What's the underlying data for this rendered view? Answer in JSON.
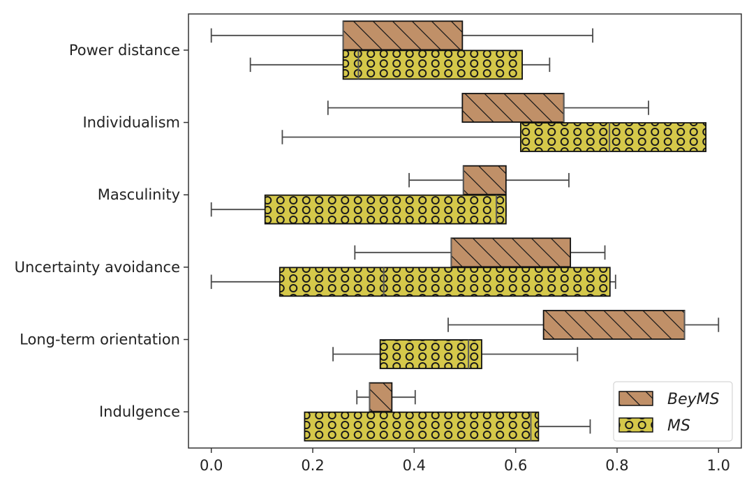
{
  "chart_data": {
    "type": "box",
    "orientation": "horizontal",
    "categories": [
      "Power distance",
      "Individualism",
      "Masculinity",
      "Uncertainty avoidance",
      "Long-term orientation",
      "Indulgence"
    ],
    "xlim": [
      -0.045,
      1.045
    ],
    "xticks": [
      0.0,
      0.2,
      0.4,
      0.6,
      0.8,
      1.0
    ],
    "xtick_labels": [
      "0.0",
      "0.2",
      "0.4",
      "0.6",
      "0.8",
      "1.0"
    ],
    "grid": false,
    "legend_position": "bottom-right",
    "series": [
      {
        "name": "BeyMS",
        "color": "#c09068",
        "hatch": "diagonal",
        "boxes": [
          {
            "whislo": 0.0,
            "q1": 0.26,
            "median": 0.26,
            "q3": 0.495,
            "whishi": 0.752
          },
          {
            "whislo": 0.23,
            "q1": 0.495,
            "median": 0.695,
            "q3": 0.695,
            "whishi": 0.862
          },
          {
            "whislo": 0.39,
            "q1": 0.497,
            "median": 0.497,
            "q3": 0.581,
            "whishi": 0.705
          },
          {
            "whislo": 0.283,
            "q1": 0.473,
            "median": 0.473,
            "q3": 0.708,
            "whishi": 0.776
          },
          {
            "whislo": 0.467,
            "q1": 0.655,
            "median": 0.933,
            "q3": 0.933,
            "whishi": 1.0
          },
          {
            "whislo": 0.287,
            "q1": 0.312,
            "median": 0.312,
            "q3": 0.356,
            "whishi": 0.402
          }
        ]
      },
      {
        "name": "MS",
        "color": "#d5c84a",
        "hatch": "circles",
        "boxes": [
          {
            "whislo": 0.077,
            "q1": 0.26,
            "median": 0.29,
            "q3": 0.613,
            "whishi": 0.667
          },
          {
            "whislo": 0.14,
            "q1": 0.61,
            "median": 0.785,
            "q3": 0.975,
            "whishi": 0.975
          },
          {
            "whislo": 0.0,
            "q1": 0.106,
            "median": 0.562,
            "q3": 0.581,
            "whishi": 0.581
          },
          {
            "whislo": 0.0,
            "q1": 0.135,
            "median": 0.34,
            "q3": 0.786,
            "whishi": 0.797
          },
          {
            "whislo": 0.24,
            "q1": 0.333,
            "median": 0.507,
            "q3": 0.533,
            "whishi": 0.722
          },
          {
            "whislo": 0.184,
            "q1": 0.184,
            "median": 0.63,
            "q3": 0.645,
            "whishi": 0.747
          }
        ]
      }
    ]
  }
}
